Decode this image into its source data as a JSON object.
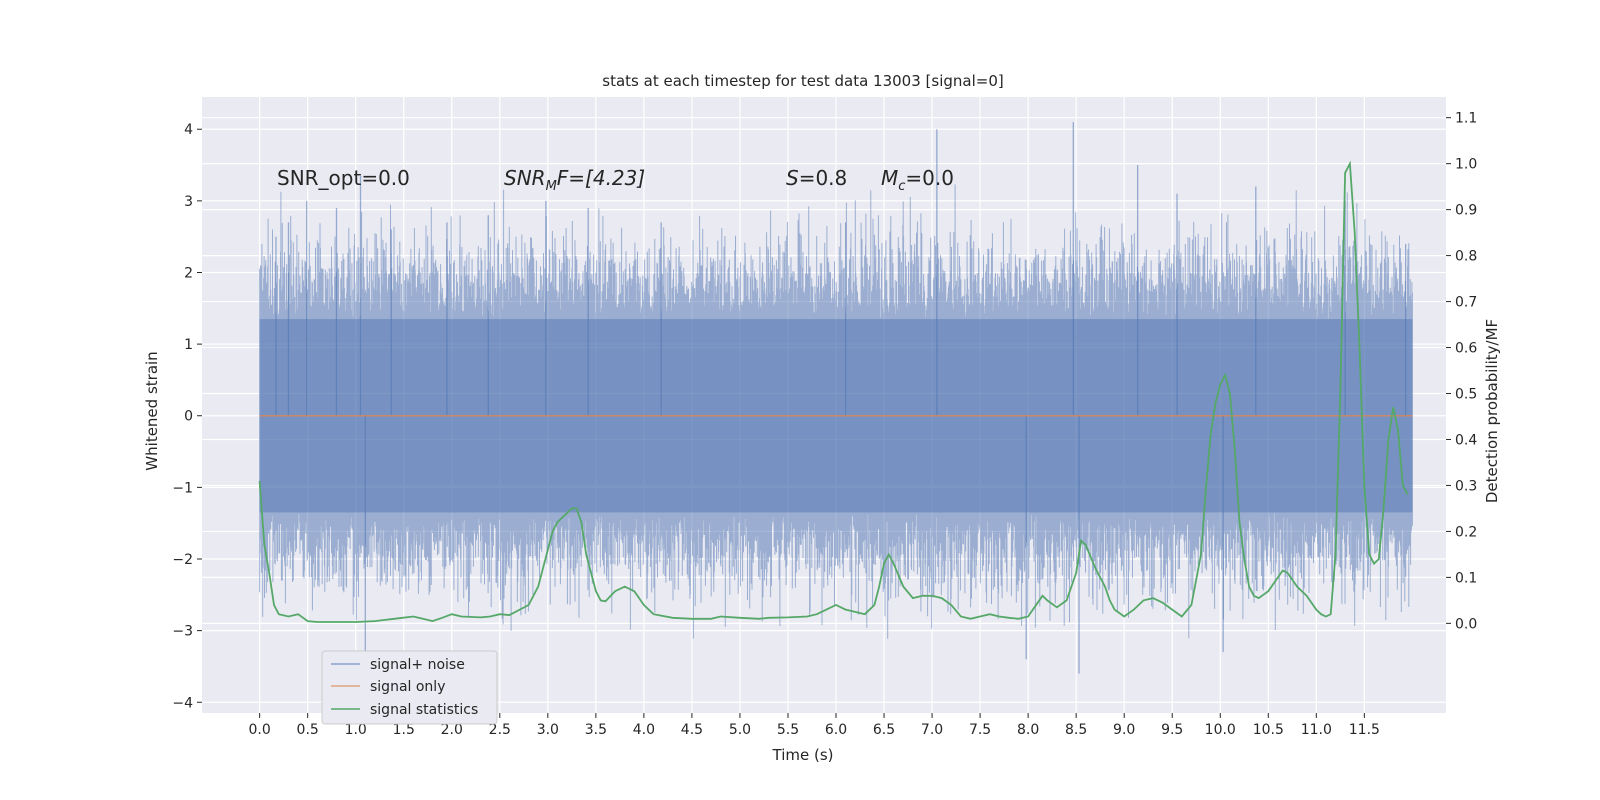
{
  "chart_data": {
    "type": "line",
    "title": "stats at each timestep for test data 13003 [signal=0]",
    "xlabel": "Time (s)",
    "ylabel_left": "Whitened strain",
    "ylabel_right": "Detection probability/MF",
    "xlim": [
      -0.6,
      12.35
    ],
    "ylim_left": [
      -4.15,
      4.45
    ],
    "ylim_right": [
      -0.195,
      1.145
    ],
    "x_ticks": [
      0.0,
      0.5,
      1.0,
      1.5,
      2.0,
      2.5,
      3.0,
      3.5,
      4.0,
      4.5,
      5.0,
      5.5,
      6.0,
      6.5,
      7.0,
      7.5,
      8.0,
      8.5,
      9.0,
      9.5,
      10.0,
      10.5,
      11.0,
      11.5
    ],
    "x_tick_labels": [
      "0.0",
      "0.5",
      "1.0",
      "1.5",
      "2.0",
      "2.5",
      "3.0",
      "3.5",
      "4.0",
      "4.5",
      "5.0",
      "5.5",
      "6.0",
      "6.5",
      "7.0",
      "7.5",
      "8.0",
      "8.5",
      "9.0",
      "9.5",
      "10.0",
      "10.5",
      "11.0",
      "11.5"
    ],
    "y_left_ticks": [
      -4,
      -3,
      -2,
      -1,
      0,
      1,
      2,
      3,
      4
    ],
    "y_left_tick_labels": [
      "−4",
      "−3",
      "−2",
      "−1",
      "0",
      "1",
      "2",
      "3",
      "4"
    ],
    "y_right_ticks": [
      0.0,
      0.1,
      0.2,
      0.3,
      0.4,
      0.5,
      0.6,
      0.7,
      0.8,
      0.9,
      1.0,
      1.1
    ],
    "y_right_tick_labels": [
      "0.0",
      "0.1",
      "0.2",
      "0.3",
      "0.4",
      "0.5",
      "0.6",
      "0.7",
      "0.8",
      "0.9",
      "1.0",
      "1.1"
    ],
    "grid": true,
    "legend_position": "lower-left",
    "colors": {
      "plot_bg": "#eaeaf2",
      "grid": "#ffffff",
      "noise": "#4c72b0",
      "signal_only": "#dd8452",
      "statistics": "#55a868"
    },
    "signal_noise": {
      "x_range": [
        0.0,
        12.0
      ],
      "envelope_note_value": "noise band",
      "spike_x": [
        0.17,
        0.3,
        0.49,
        0.8,
        1.05,
        1.1,
        1.37,
        1.95,
        2.38,
        2.98,
        3.42,
        4.18,
        6.1,
        7.05,
        7.98,
        8.47,
        8.53,
        9.14,
        9.55,
        10.37,
        11.3,
        11.93,
        10.03
      ],
      "spike_y": [
        2.5,
        2.7,
        3.0,
        2.9,
        3.35,
        -3.4,
        2.6,
        2.7,
        2.8,
        3.0,
        2.9,
        2.7,
        2.7,
        4.0,
        -3.4,
        4.1,
        -3.6,
        3.5,
        3.1,
        3.2,
        3.0,
        2.4,
        -3.3
      ]
    },
    "series": [
      {
        "name": "signal+ noise",
        "axis": "left",
        "description_values": "dense whitened strain samples"
      },
      {
        "name": "signal only",
        "axis": "left",
        "x": [
          0.0,
          12.0
        ],
        "y": [
          0.0,
          0.0
        ]
      },
      {
        "name": "signal statistics",
        "axis": "right",
        "x": [
          0.0,
          0.05,
          0.1,
          0.15,
          0.2,
          0.3,
          0.4,
          0.5,
          0.6,
          0.8,
          1.0,
          1.2,
          1.4,
          1.6,
          1.7,
          1.8,
          1.9,
          2.0,
          2.1,
          2.3,
          2.4,
          2.5,
          2.6,
          2.8,
          2.9,
          3.0,
          3.05,
          3.1,
          3.2,
          3.25,
          3.3,
          3.35,
          3.4,
          3.5,
          3.55,
          3.6,
          3.7,
          3.8,
          3.9,
          4.0,
          4.1,
          4.3,
          4.5,
          4.7,
          4.8,
          5.0,
          5.2,
          5.3,
          5.5,
          5.7,
          5.8,
          5.9,
          6.0,
          6.1,
          6.2,
          6.3,
          6.4,
          6.45,
          6.5,
          6.55,
          6.6,
          6.7,
          6.8,
          6.9,
          7.0,
          7.1,
          7.2,
          7.3,
          7.4,
          7.5,
          7.6,
          7.7,
          7.8,
          7.9,
          8.0,
          8.1,
          8.15,
          8.2,
          8.3,
          8.4,
          8.5,
          8.55,
          8.6,
          8.7,
          8.8,
          8.85,
          8.9,
          9.0,
          9.1,
          9.2,
          9.3,
          9.4,
          9.5,
          9.6,
          9.7,
          9.8,
          9.85,
          9.9,
          9.95,
          10.0,
          10.05,
          10.1,
          10.15,
          10.2,
          10.25,
          10.3,
          10.35,
          10.4,
          10.5,
          10.6,
          10.65,
          10.7,
          10.8,
          10.9,
          11.0,
          11.05,
          11.1,
          11.15,
          11.2,
          11.25,
          11.3,
          11.35,
          11.4,
          11.45,
          11.5,
          11.55,
          11.6,
          11.65,
          11.7,
          11.75,
          11.8,
          11.85,
          11.9,
          11.95
        ],
        "y": [
          0.31,
          0.17,
          0.11,
          0.04,
          0.02,
          0.015,
          0.02,
          0.005,
          0.003,
          0.003,
          0.003,
          0.005,
          0.01,
          0.015,
          0.01,
          0.005,
          0.012,
          0.02,
          0.015,
          0.013,
          0.015,
          0.02,
          0.018,
          0.04,
          0.08,
          0.16,
          0.2,
          0.22,
          0.24,
          0.25,
          0.25,
          0.22,
          0.15,
          0.07,
          0.05,
          0.048,
          0.07,
          0.08,
          0.07,
          0.04,
          0.02,
          0.012,
          0.01,
          0.01,
          0.015,
          0.012,
          0.01,
          0.012,
          0.013,
          0.015,
          0.02,
          0.03,
          0.04,
          0.03,
          0.025,
          0.02,
          0.04,
          0.08,
          0.13,
          0.15,
          0.13,
          0.08,
          0.055,
          0.06,
          0.06,
          0.055,
          0.04,
          0.015,
          0.01,
          0.015,
          0.02,
          0.015,
          0.012,
          0.01,
          0.015,
          0.045,
          0.06,
          0.05,
          0.035,
          0.05,
          0.11,
          0.18,
          0.17,
          0.12,
          0.08,
          0.05,
          0.03,
          0.015,
          0.03,
          0.05,
          0.055,
          0.045,
          0.03,
          0.015,
          0.04,
          0.15,
          0.29,
          0.41,
          0.48,
          0.52,
          0.54,
          0.5,
          0.38,
          0.22,
          0.14,
          0.08,
          0.06,
          0.055,
          0.07,
          0.1,
          0.115,
          0.11,
          0.08,
          0.06,
          0.03,
          0.02,
          0.015,
          0.02,
          0.15,
          0.5,
          0.98,
          1.0,
          0.85,
          0.6,
          0.3,
          0.15,
          0.13,
          0.14,
          0.25,
          0.4,
          0.47,
          0.42,
          0.3,
          0.28
        ]
      }
    ],
    "annotations": {
      "snr_opt": "SNR_opt=0.0",
      "snr_mf_prefix": "SNR",
      "snr_mf_sub": "M",
      "snr_mf_rest": "F=[4.23]",
      "s_italic": "S",
      "s_value": "=0.8",
      "mc_italic": "M",
      "mc_sub": "c",
      "mc_value": "=0.0"
    },
    "legend": [
      {
        "label": "signal+ noise"
      },
      {
        "label": "signal only"
      },
      {
        "label": "signal statistics"
      }
    ]
  }
}
